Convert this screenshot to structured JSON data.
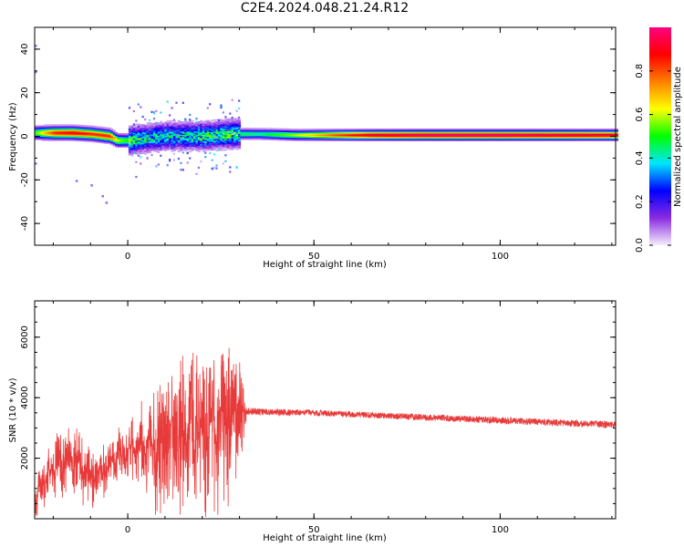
{
  "figure": {
    "title": "C2E4.2024.048.21.24.R12"
  },
  "chart_data": [
    {
      "type": "heatmap",
      "name": "spectrogram",
      "xlabel": "Height of straight line (km)",
      "ylabel": "Frequency (Hz)",
      "xlim": [
        -25,
        131
      ],
      "ylim": [
        -50,
        50
      ],
      "xticks": [
        0,
        50,
        100
      ],
      "yticks": [
        -40,
        -20,
        0,
        20,
        40
      ],
      "colorbar": {
        "label": "Normalized spectral amplitude",
        "range": [
          0,
          1
        ],
        "ticks": [
          0.0,
          0.2,
          0.4,
          0.6,
          0.8
        ],
        "colormap": [
          "#f5eefc",
          "#8a2be2",
          "#0000ff",
          "#00e5ff",
          "#00ff00",
          "#ffff00",
          "#ff8000",
          "#ff0000",
          "#ff0080"
        ]
      },
      "ridge": [
        {
          "x": -25,
          "f": 1.5,
          "a": 0.55
        },
        {
          "x": -20,
          "f": 1.5,
          "a": 0.85
        },
        {
          "x": -15,
          "f": 1.5,
          "a": 0.9
        },
        {
          "x": -10,
          "f": 1.0,
          "a": 0.85
        },
        {
          "x": -5,
          "f": 0.0,
          "a": 0.85
        },
        {
          "x": -3,
          "f": -2.0,
          "a": 0.6
        },
        {
          "x": 0,
          "f": -2.0,
          "a": 0.5
        },
        {
          "x": 5,
          "f": -1.0,
          "a": 0.4
        },
        {
          "x": 10,
          "f": 0.0,
          "a": 0.4
        },
        {
          "x": 20,
          "f": 0.0,
          "a": 0.45
        },
        {
          "x": 28,
          "f": 1.0,
          "a": 0.5
        },
        {
          "x": 35,
          "f": 1.0,
          "a": 0.45
        },
        {
          "x": 45,
          "f": 0.5,
          "a": 0.6
        },
        {
          "x": 55,
          "f": 0.5,
          "a": 0.8
        },
        {
          "x": 65,
          "f": 0.5,
          "a": 0.95
        },
        {
          "x": 80,
          "f": 0.5,
          "a": 1.0
        },
        {
          "x": 100,
          "f": 0.5,
          "a": 1.0
        },
        {
          "x": 131,
          "f": 0.5,
          "a": 0.95
        }
      ]
    },
    {
      "type": "line",
      "name": "snr",
      "xlabel": "Height of straight line (km)",
      "ylabel": "SNR (10 * v/v)",
      "xlim": [
        -25,
        131
      ],
      "ylim": [
        0,
        7200
      ],
      "xticks": [
        0,
        50,
        100
      ],
      "yticks": [
        2000,
        4000,
        6000
      ],
      "color": "#e83a3a",
      "envelope": [
        {
          "x": -25,
          "mean": 600,
          "amp": 500
        },
        {
          "x": -20,
          "mean": 1700,
          "amp": 900
        },
        {
          "x": -15,
          "mean": 1900,
          "amp": 1000
        },
        {
          "x": -10,
          "mean": 1300,
          "amp": 900
        },
        {
          "x": -5,
          "mean": 1800,
          "amp": 700
        },
        {
          "x": 0,
          "mean": 2300,
          "amp": 800
        },
        {
          "x": 5,
          "mean": 2300,
          "amp": 1200
        },
        {
          "x": 10,
          "mean": 2500,
          "amp": 2200
        },
        {
          "x": 15,
          "mean": 2700,
          "amp": 2200
        },
        {
          "x": 20,
          "mean": 2900,
          "amp": 2400
        },
        {
          "x": 25,
          "mean": 3200,
          "amp": 2800
        },
        {
          "x": 30,
          "mean": 3400,
          "amp": 1800
        },
        {
          "x": 32,
          "mean": 3550,
          "amp": 120
        },
        {
          "x": 50,
          "mean": 3500,
          "amp": 100
        },
        {
          "x": 70,
          "mean": 3400,
          "amp": 100
        },
        {
          "x": 90,
          "mean": 3300,
          "amp": 110
        },
        {
          "x": 110,
          "mean": 3200,
          "amp": 110
        },
        {
          "x": 131,
          "mean": 3100,
          "amp": 110
        }
      ]
    }
  ]
}
